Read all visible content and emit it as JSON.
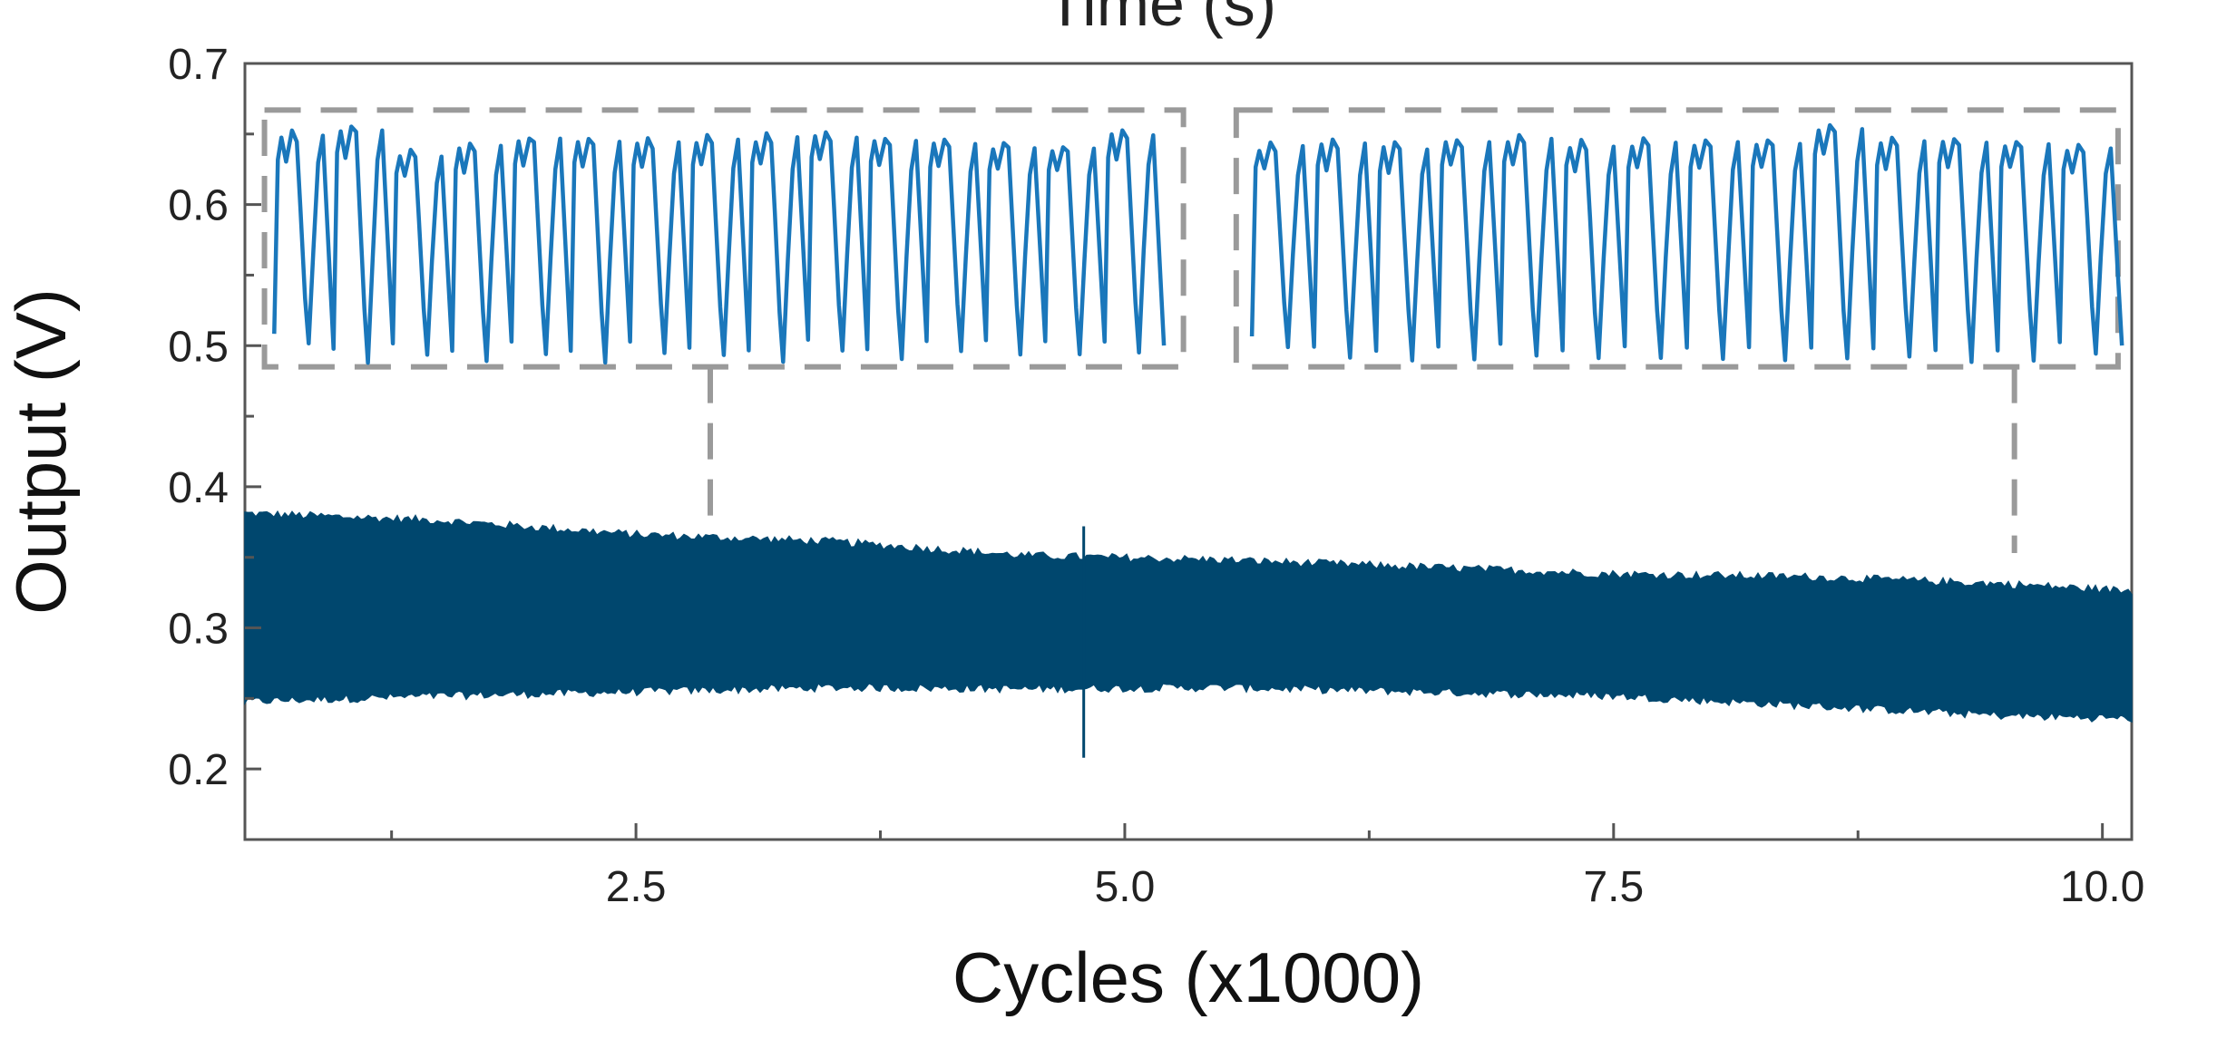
{
  "chart_data": {
    "type": "line",
    "title_cut": "Time (s)",
    "xlabel": "Cycles (x1000)",
    "ylabel": "Output (V)",
    "xlim": [
      0.5,
      10.15
    ],
    "ylim": [
      0.15,
      0.7
    ],
    "x_ticks": [
      2.5,
      5.0,
      7.5,
      10.0
    ],
    "x_tick_labels": [
      "2.5",
      "5.0",
      "7.5",
      "10.0"
    ],
    "y_ticks": [
      0.2,
      0.3,
      0.4,
      0.5,
      0.6,
      0.7
    ],
    "y_tick_labels": [
      "0.2",
      "0.3",
      "0.4",
      "0.5",
      "0.6",
      "0.7"
    ],
    "grid": false,
    "legend": "none",
    "series": [
      {
        "role": "main-envelope",
        "color": "#00476e",
        "x": [
          0.5,
          1.5,
          2.5,
          3.5,
          4.5,
          5.5,
          6.5,
          7.5,
          8.5,
          9.5,
          10.15
        ],
        "upper": [
          0.381,
          0.376,
          0.366,
          0.361,
          0.351,
          0.348,
          0.343,
          0.338,
          0.336,
          0.331,
          0.326
        ],
        "lower": [
          0.248,
          0.252,
          0.255,
          0.258,
          0.257,
          0.258,
          0.255,
          0.252,
          0.245,
          0.238,
          0.236
        ],
        "spike": {
          "x": 4.79,
          "y_low": 0.208,
          "y_high": 0.372
        }
      },
      {
        "role": "inset-waveform-early",
        "color": "#1a77bb",
        "x_range": [
          0.65,
          5.2
        ],
        "cycles": 15,
        "peak_values": [
          0.651,
          0.656,
          0.638,
          0.643,
          0.648,
          0.648,
          0.646,
          0.648,
          0.649,
          0.651,
          0.648,
          0.646,
          0.644,
          0.642,
          0.653
        ],
        "trough_values": [
          0.5,
          0.488,
          0.495,
          0.49,
          0.495,
          0.488,
          0.495,
          0.492,
          0.49,
          0.495,
          0.49,
          0.495,
          0.495,
          0.495,
          0.495
        ]
      },
      {
        "role": "inset-waveform-late",
        "color": "#1a77bb",
        "x_range": [
          5.65,
          10.1
        ],
        "cycles": 14,
        "peak_values": [
          0.643,
          0.645,
          0.643,
          0.647,
          0.648,
          0.645,
          0.646,
          0.647,
          0.646,
          0.656,
          0.646,
          0.647,
          0.645,
          0.643
        ],
        "trough_values": [
          0.5,
          0.49,
          0.49,
          0.49,
          0.492,
          0.49,
          0.492,
          0.49,
          0.49,
          0.49,
          0.492,
          0.49,
          0.49,
          0.495
        ]
      }
    ],
    "annotations": [
      {
        "type": "dashed-box",
        "x_range": [
          0.6,
          5.3
        ],
        "y_range": [
          0.485,
          0.667
        ],
        "color": "#9a9a9a",
        "connector_x": 2.88,
        "connector_y_end": 0.372
      },
      {
        "type": "dashed-box",
        "x_range": [
          5.57,
          10.08
        ],
        "y_range": [
          0.485,
          0.667
        ],
        "color": "#9a9a9a",
        "connector_x": 9.55,
        "connector_y_end": 0.353
      }
    ]
  }
}
